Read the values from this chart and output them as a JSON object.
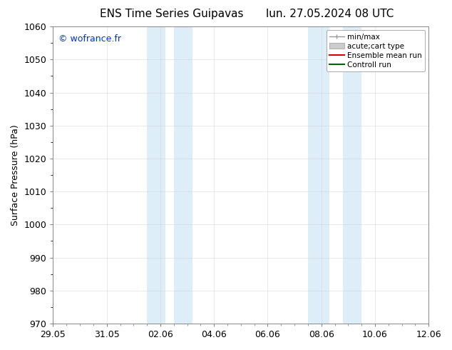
{
  "title_left": "ENS Time Series Guipavas",
  "title_right": "lun. 27.05.2024 08 UTC",
  "ylabel": "Surface Pressure (hPa)",
  "ylim": [
    970,
    1060
  ],
  "yticks": [
    970,
    980,
    990,
    1000,
    1010,
    1020,
    1030,
    1040,
    1050,
    1060
  ],
  "xtick_labels": [
    "29.05",
    "31.05",
    "02.06",
    "04.06",
    "06.06",
    "08.06",
    "10.06",
    "12.06"
  ],
  "xtick_positions": [
    0,
    2,
    4,
    6,
    8,
    10,
    12,
    14
  ],
  "xlim": [
    0,
    14
  ],
  "shaded_bands": [
    {
      "x_start": 3.5,
      "x_end": 4.2
    },
    {
      "x_start": 4.5,
      "x_end": 5.2
    },
    {
      "x_start": 9.5,
      "x_end": 10.3
    },
    {
      "x_start": 10.8,
      "x_end": 11.5
    }
  ],
  "shaded_color": "#ddeef8",
  "background_color": "#ffffff",
  "watermark_text": "© wofrance.fr",
  "watermark_color": "#0033cc",
  "legend_entries": [
    {
      "label": "min/max",
      "color": "#999999"
    },
    {
      "label": "acute;cart type",
      "color": "#cccccc"
    },
    {
      "label": "Ensemble mean run",
      "color": "#dd0000"
    },
    {
      "label": "Controll run",
      "color": "#006600"
    }
  ],
  "title_fontsize": 11,
  "ylabel_fontsize": 9,
  "tick_fontsize": 9,
  "legend_fontsize": 7.5,
  "watermark_fontsize": 9
}
